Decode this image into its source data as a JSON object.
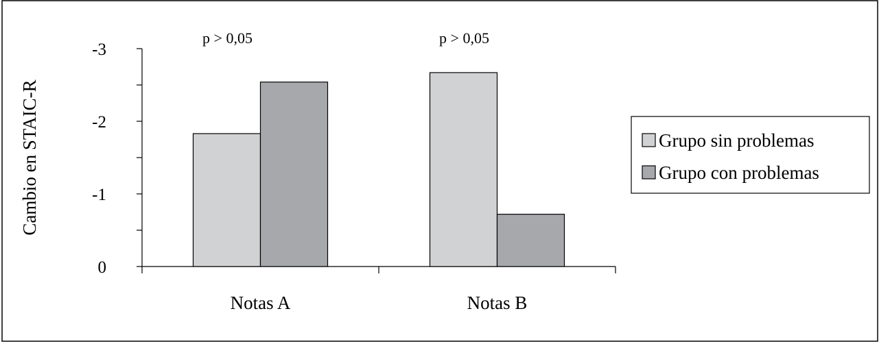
{
  "chart_data": {
    "type": "bar",
    "ylabel": "Cambio en STAIC-R",
    "categories": [
      "Notas A",
      "Notas B"
    ],
    "ylim": [
      0,
      -3
    ],
    "y_ticks": [
      -3,
      -2,
      -1,
      0
    ],
    "y_tick_labels": [
      "-3",
      "-2",
      "-1",
      "0"
    ],
    "series": [
      {
        "name": "Grupo sin problemas",
        "values": [
          -1.83,
          -2.67
        ],
        "color": "#d1d2d4"
      },
      {
        "name": "Grupo con problemas",
        "values": [
          -2.54,
          -0.72
        ],
        "color": "#a7a8ab"
      }
    ],
    "annotations": [
      "p > 0,05",
      "p > 0,05"
    ],
    "legend_position": "right",
    "grid": false
  }
}
